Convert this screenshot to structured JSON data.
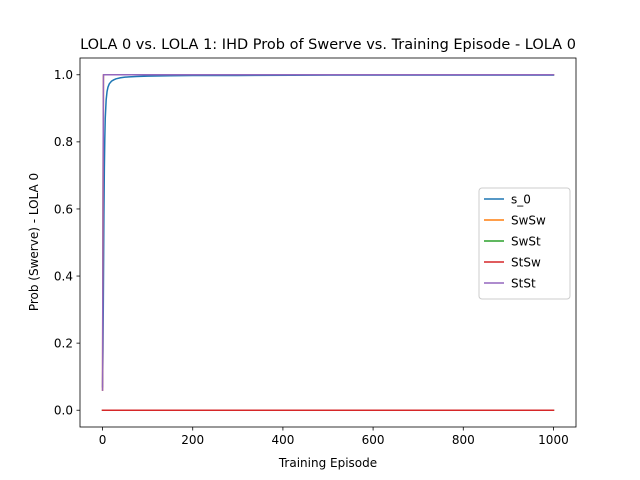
{
  "chart_data": {
    "type": "line",
    "title": "LOLA 0 vs. LOLA 1: IHD Prob of Swerve vs. Training Episode - LOLA 0",
    "xlabel": "Training Episode",
    "ylabel": "Prob (Swerve) - LOLA 0",
    "xlim": [
      -50,
      1050
    ],
    "ylim": [
      -0.05,
      1.05
    ],
    "xticks": [
      0,
      200,
      400,
      600,
      800,
      1000
    ],
    "yticks": [
      0.0,
      0.2,
      0.4,
      0.6,
      0.8,
      1.0
    ],
    "xtick_labels": [
      "0",
      "200",
      "400",
      "600",
      "800",
      "1000"
    ],
    "ytick_labels": [
      "0.0",
      "0.2",
      "0.4",
      "0.6",
      "0.8",
      "1.0"
    ],
    "grid": false,
    "legend_position": "center-right",
    "series": [
      {
        "name": "s_0",
        "color": "#1f77b4",
        "x": [
          0,
          1,
          2,
          3,
          4,
          5,
          6,
          8,
          10,
          12,
          15,
          20,
          25,
          30,
          40,
          50,
          75,
          100,
          150,
          200,
          300,
          500,
          1000
        ],
        "y": [
          0.07,
          0.18,
          0.38,
          0.58,
          0.72,
          0.81,
          0.87,
          0.925,
          0.95,
          0.963,
          0.973,
          0.981,
          0.985,
          0.988,
          0.991,
          0.993,
          0.995,
          0.996,
          0.997,
          0.998,
          0.998,
          0.999,
          0.999
        ]
      },
      {
        "name": "SwSw",
        "color": "#ff7f0e",
        "x": [
          0,
          1,
          2,
          1000
        ],
        "y": [
          0.06,
          0.6,
          1.0,
          1.0
        ]
      },
      {
        "name": "SwSt",
        "color": "#2ca02c",
        "x": [
          0,
          1000
        ],
        "y": [
          0.0,
          0.0
        ]
      },
      {
        "name": "StSw",
        "color": "#d62728",
        "x": [
          0,
          1000
        ],
        "y": [
          0.0,
          0.0
        ]
      },
      {
        "name": "StSt",
        "color": "#9467bd",
        "x": [
          0,
          1,
          2,
          1000
        ],
        "y": [
          0.06,
          0.6,
          1.0,
          1.0
        ]
      }
    ]
  }
}
